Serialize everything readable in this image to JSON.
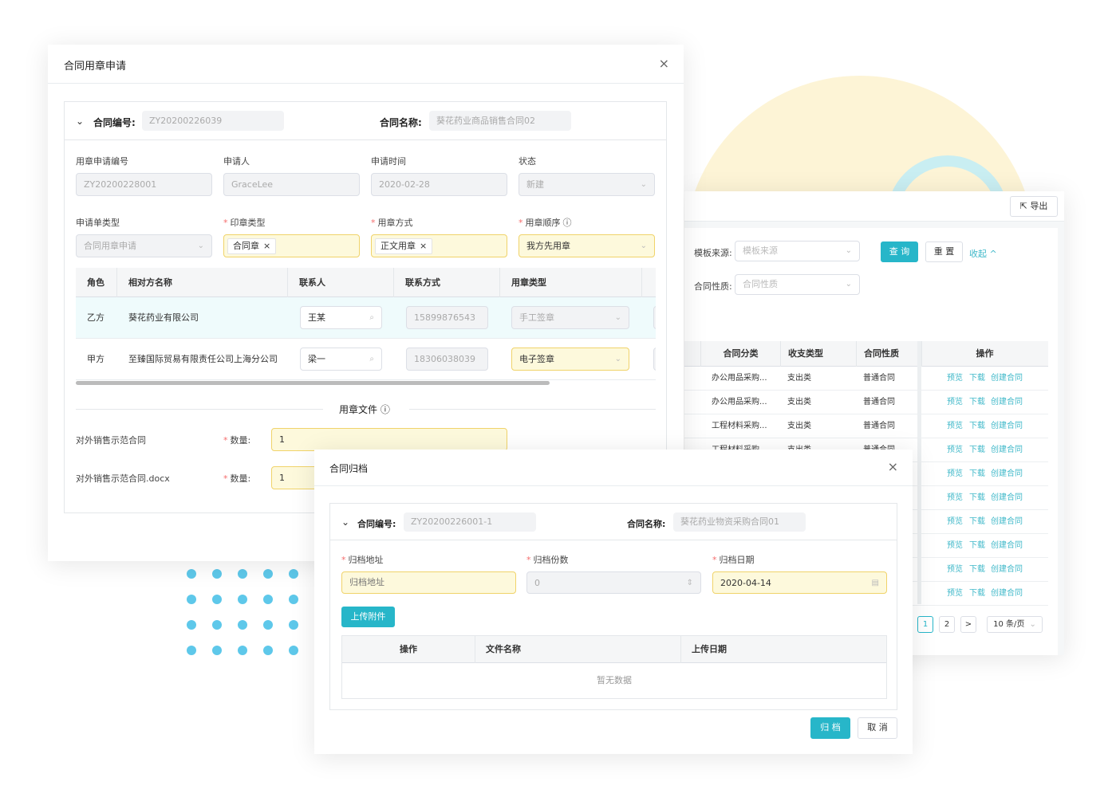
{
  "colors": {
    "accent": "#27b6c9",
    "highlight_bg": "#fdf9dc",
    "highlight_border": "#f0d36a",
    "deco_yellow": "#fdf4d6",
    "deco_cyan": "#c9eef2",
    "dots": "#5ec8ea"
  },
  "list_panel": {
    "export_label": "导出",
    "export_icon": "export-icon",
    "filters": [
      {
        "label": "模板来源:",
        "placeholder": "模板来源"
      },
      {
        "label": "合同性质:",
        "placeholder": "合同性质"
      }
    ],
    "query_label": "查 询",
    "reset_label": "重 置",
    "collapse_label": "收起 ^",
    "columns": [
      "合同分类",
      "收支类型",
      "合同性质",
      "操作"
    ],
    "rows": [
      [
        "办公用品采购...",
        "支出类",
        "普通合同"
      ],
      [
        "办公用品采购...",
        "支出类",
        "普通合同"
      ],
      [
        "工程材料采购...",
        "支出类",
        "普通合同"
      ],
      [
        "工程材料采购...",
        "支出类",
        "普通合同"
      ],
      [
        "",
        "",
        ""
      ],
      [
        "",
        "",
        ""
      ],
      [
        "",
        "",
        ""
      ],
      [
        "",
        "",
        ""
      ],
      [
        "",
        "",
        ""
      ],
      [
        "",
        "",
        ""
      ]
    ],
    "actions": [
      "预览",
      "下载",
      "创建合同"
    ],
    "pagination": {
      "pages": [
        "1",
        "2"
      ],
      "current": "1",
      "next": ">",
      "page_size": "10 条/页"
    }
  },
  "seal_dialog": {
    "title": "合同用章申请",
    "close": "×",
    "contract_no_label": "合同编号:",
    "contract_no": "ZY20200226039",
    "contract_name_label": "合同名称:",
    "contract_name": "葵花药业商品销售合同02",
    "fields": [
      {
        "label": "用章申请编号",
        "value": "ZY20200228001",
        "required": false
      },
      {
        "label": "申请人",
        "value": "GraceLee",
        "required": false
      },
      {
        "label": "申请时间",
        "value": "2020-02-28",
        "required": false
      },
      {
        "label": "状态",
        "value": "新建",
        "required": false
      },
      {
        "label": "申请单类型",
        "value": "合同用章申请",
        "required": false
      },
      {
        "label": "印章类型",
        "value": "合同章",
        "required": true
      },
      {
        "label": "用章方式",
        "value": "正文用章",
        "required": true
      },
      {
        "label": "用章顺序",
        "value": "我方先用章",
        "required": true
      }
    ],
    "table_columns": [
      "角色",
      "相对方名称",
      "联系人",
      "联系方式",
      "用章类型"
    ],
    "table_rows": [
      {
        "role": "乙方",
        "name": "葵花药业有限公司",
        "contact": "王某",
        "phone": "15899876543",
        "seal_type": "手工签章"
      },
      {
        "role": "甲方",
        "name": "至臻国际贸易有限责任公司上海分公司",
        "contact": "梁一",
        "phone": "18306038039",
        "seal_type": "电子签章"
      }
    ],
    "files_title": "用章文件",
    "qty_label": "数量:",
    "files": [
      {
        "name": "对外销售示范合同",
        "qty": "1"
      },
      {
        "name": "对外销售示范合同.docx",
        "qty": "1"
      }
    ]
  },
  "archive_dialog": {
    "title": "合同归档",
    "close": "×",
    "contract_no_label": "合同编号:",
    "contract_no": "ZY20200226001-1",
    "contract_name_label": "合同名称:",
    "contract_name": "葵花药业物资采购合同01",
    "address_label": "归档地址",
    "address_placeholder": "归档地址",
    "copies_label": "归档份数",
    "copies": "0",
    "date_label": "归档日期",
    "date": "2020-04-14",
    "upload_label": "上传附件",
    "columns": [
      "操作",
      "文件名称",
      "上传日期"
    ],
    "empty": "暂无数据",
    "submit_label": "归 档",
    "cancel_label": "取 消"
  }
}
